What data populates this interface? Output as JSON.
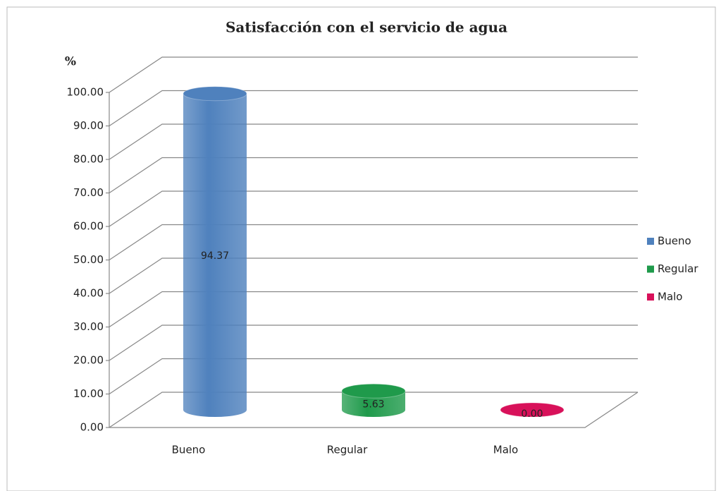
{
  "chart_data": {
    "type": "bar3d",
    "title": "Satisfacción con el servicio de agua",
    "ylabel": "%",
    "categories": [
      "Bueno",
      "Regular",
      "Malo"
    ],
    "values": [
      94.37,
      5.63,
      0.0
    ],
    "value_labels": [
      "94.37",
      "5.63",
      "0.00"
    ],
    "colors": [
      "#4f81bd",
      "#1f9a4b",
      "#d8115a"
    ],
    "ylim": [
      0,
      100
    ],
    "yticks": [
      {
        "value": 0,
        "label": "0.00"
      },
      {
        "value": 10,
        "label": "10.00"
      },
      {
        "value": 20,
        "label": "20.00"
      },
      {
        "value": 30,
        "label": "30.00"
      },
      {
        "value": 40,
        "label": "40.00"
      },
      {
        "value": 50,
        "label": "50.00"
      },
      {
        "value": 60,
        "label": "60.00"
      },
      {
        "value": 70,
        "label": "70.00"
      },
      {
        "value": 80,
        "label": "80.00"
      },
      {
        "value": 90,
        "label": "90.00"
      },
      {
        "value": 100,
        "label": "100.00"
      }
    ],
    "grid": true,
    "legend": "right"
  }
}
